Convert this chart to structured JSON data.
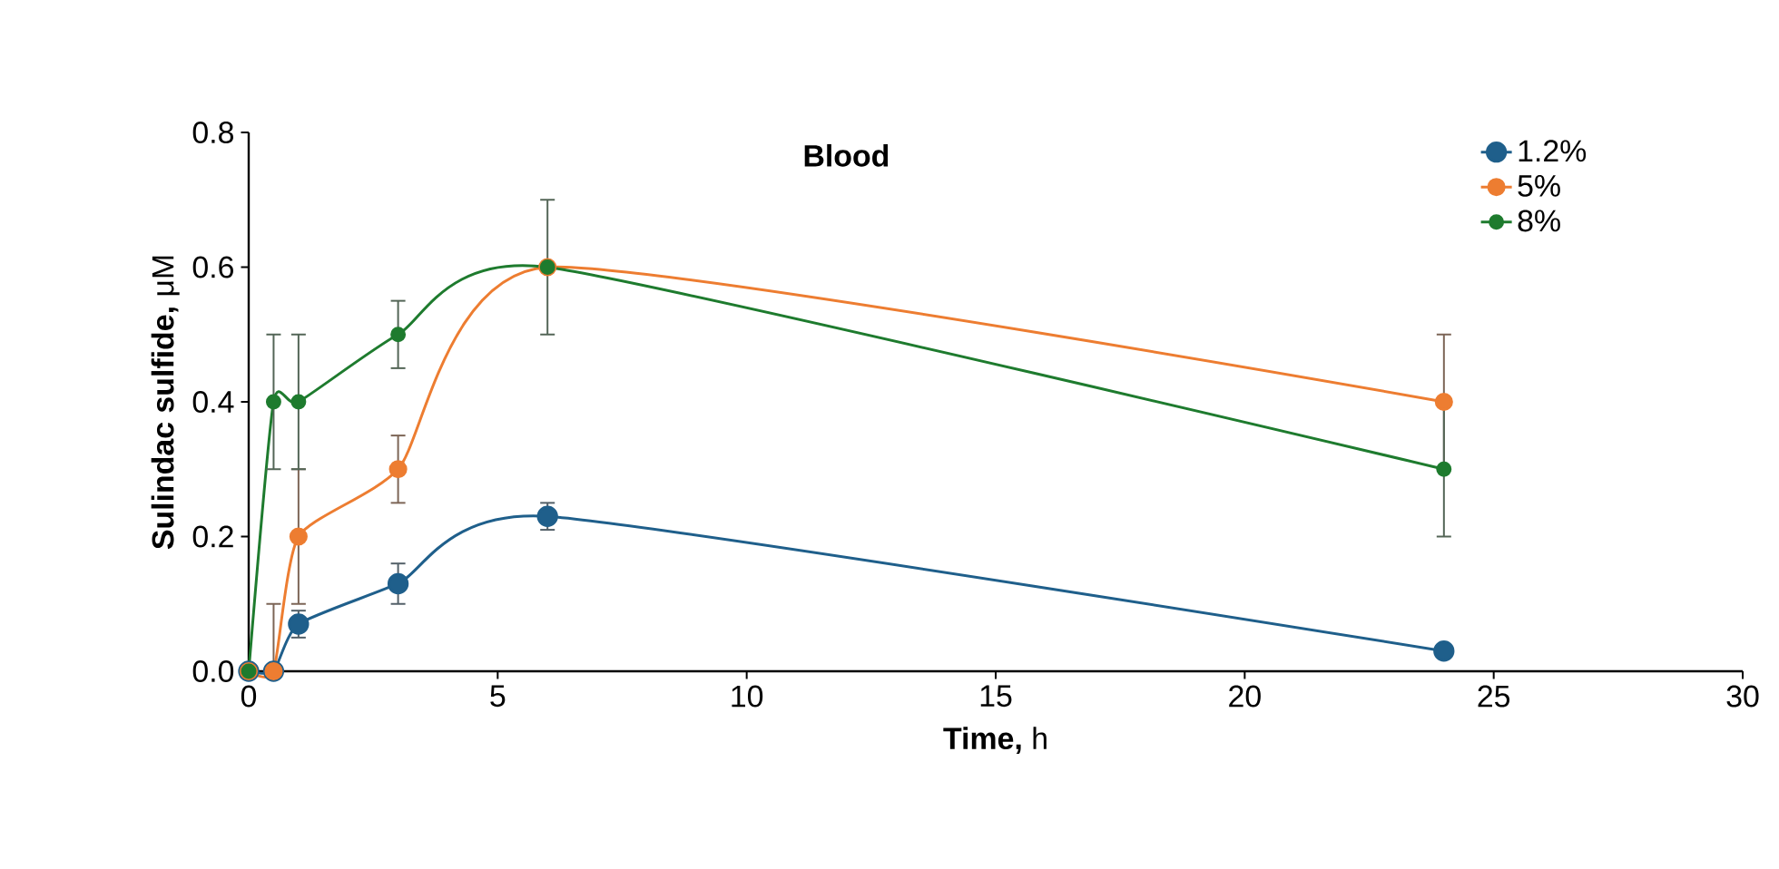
{
  "chart_data": {
    "type": "line",
    "title": "Blood",
    "xlabel": "**Time,** h",
    "ylabel": "**Sulindac sulfide,** μM",
    "xlim": [
      0,
      30
    ],
    "xticks": [
      0,
      5,
      10,
      15,
      20,
      25,
      30
    ],
    "ylim": [
      0,
      0.8
    ],
    "yticks": [
      {
        "value": 0,
        "label": "0.0"
      },
      0.2,
      0.4,
      0.6,
      0.8
    ],
    "x": [
      0,
      0.5,
      1,
      3,
      6,
      24
    ],
    "legend": "top right",
    "marker": "circle",
    "line_style": "solid",
    "grid": false,
    "series": [
      {
        "name": "1.2%",
        "color": "#1f5f8b",
        "values": [
          0,
          0,
          0.07,
          0.13,
          0.23,
          0.03
        ],
        "errors": [
          null,
          null,
          0.02,
          0.03,
          0.02,
          null
        ]
      },
      {
        "name": "5%",
        "color": "#ed7d31",
        "values": [
          0,
          0,
          0.2,
          0.3,
          0.6,
          0.4
        ],
        "errors": [
          null,
          [
            0,
            0.1
          ],
          0.1,
          0.05,
          null,
          0.1
        ]
      },
      {
        "name": "8%",
        "color": "#1e7b2e",
        "values": [
          0,
          0.4,
          0.4,
          0.5,
          0.6,
          0.3
        ],
        "errors": [
          null,
          0.1,
          0.1,
          0.05,
          0.1,
          0.1
        ]
      }
    ]
  }
}
